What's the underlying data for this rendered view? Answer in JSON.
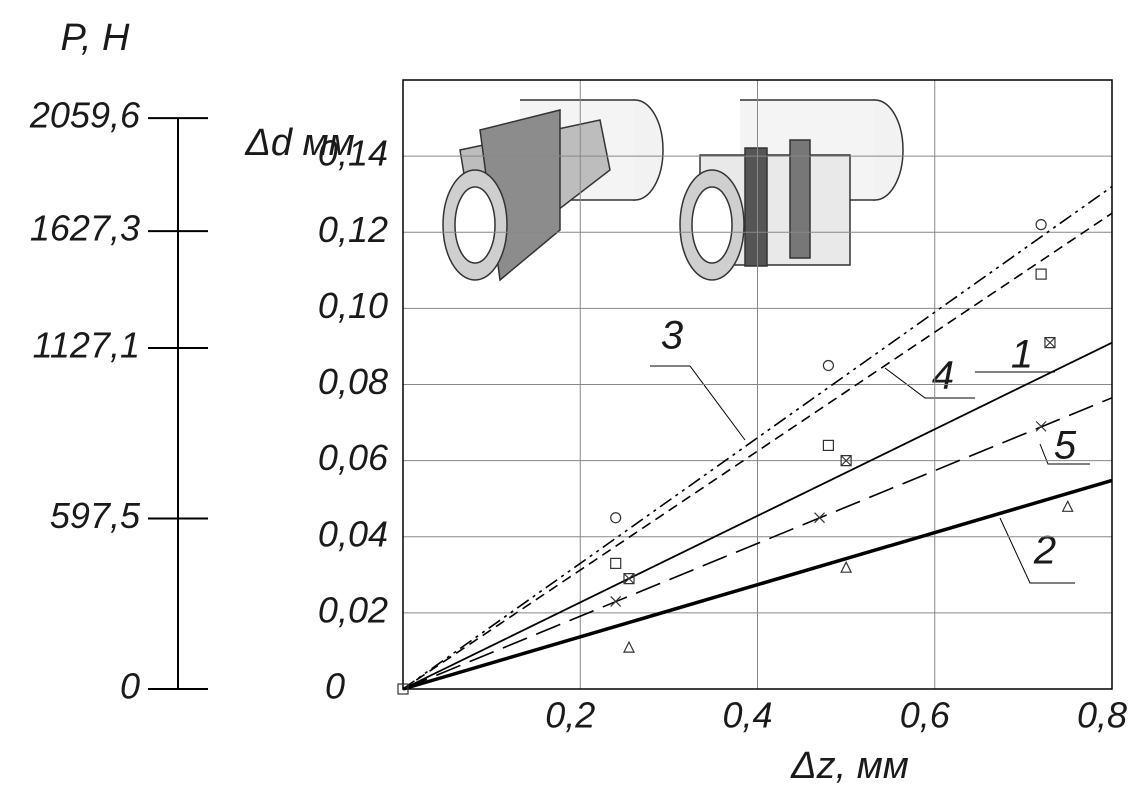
{
  "chart_data": {
    "type": "line",
    "xlabel": "Δz, мм",
    "ylabel": "Δd мм",
    "xlim": [
      0,
      0.8
    ],
    "ylim": [
      0,
      0.16
    ],
    "xticks": [
      {
        "value": 0.2,
        "label": "0,2"
      },
      {
        "value": 0.4,
        "label": "0,4"
      },
      {
        "value": 0.6,
        "label": "0,6"
      },
      {
        "value": 0.8,
        "label": "0,8"
      }
    ],
    "yticks": [
      0,
      {
        "value": 0.02,
        "label": "0,02"
      },
      {
        "value": 0.04,
        "label": "0,04"
      },
      {
        "value": 0.06,
        "label": "0,06"
      },
      {
        "value": 0.08,
        "label": "0,08"
      },
      {
        "value": 0.1,
        "label": "0,10"
      },
      {
        "value": 0.12,
        "label": "0,12"
      },
      {
        "value": 0.14,
        "label": "0,14"
      }
    ],
    "grid": true,
    "x": [
      0,
      0.8
    ],
    "series": [
      {
        "name": "3",
        "color": "#000000",
        "style": "dashdot",
        "values": [
          0,
          0.132
        ]
      },
      {
        "name": "4",
        "color": "#000000",
        "style": "dashed",
        "values": [
          0,
          0.125
        ]
      },
      {
        "name": "1",
        "color": "#000000",
        "style": "solid",
        "values": [
          0,
          0.091
        ]
      },
      {
        "name": "5",
        "color": "#000000",
        "style": "longdash",
        "values": [
          0,
          0.0765
        ]
      },
      {
        "name": "2",
        "color": "#000000",
        "style": "thick",
        "values": [
          0,
          0.0548
        ]
      }
    ],
    "points": [
      {
        "marker": "circle",
        "x": [
          0.24,
          0.48,
          0.72
        ],
        "y": [
          0.045,
          0.085,
          0.122
        ]
      },
      {
        "marker": "square",
        "x": [
          0,
          0.24,
          0.48,
          0.72
        ],
        "y": [
          0,
          0.033,
          0.064,
          0.109
        ]
      },
      {
        "marker": "boxcross",
        "x": [
          0.255,
          0.5,
          0.73
        ],
        "y": [
          0.029,
          0.06,
          0.091
        ]
      },
      {
        "marker": "cross",
        "x": [
          0.24,
          0.47,
          0.72
        ],
        "y": [
          0.023,
          0.045,
          0.069
        ]
      },
      {
        "marker": "triangle",
        "x": [
          0.255,
          0.5,
          0.75
        ],
        "y": [
          0.011,
          0.032,
          0.048
        ]
      }
    ],
    "p_axis": {
      "label": "P, H",
      "ticks": [
        {
          "value": 0,
          "label": "0",
          "dd": 0
        },
        {
          "value": 597.5,
          "label": "597,5",
          "dd": 0.0448
        },
        {
          "value": 1127.1,
          "label": "1127,1",
          "dd": 0.0896
        },
        {
          "value": 1627.3,
          "label": "1627,3",
          "dd": 0.1203
        },
        {
          "value": 2059.6,
          "label": "2059,6",
          "dd": 0.15
        }
      ]
    }
  }
}
